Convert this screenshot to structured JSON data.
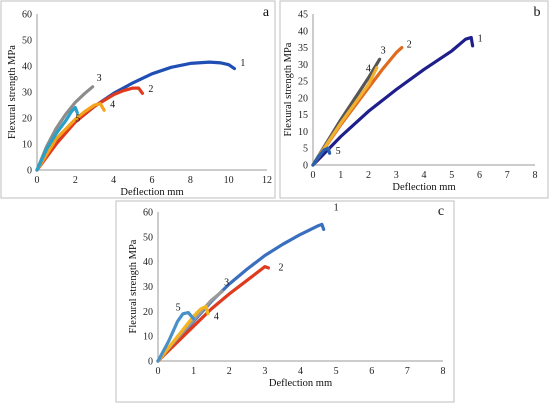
{
  "chart_data": [
    {
      "type": "line",
      "panel": "a",
      "xlabel": "Deflection mm",
      "ylabel": "Flexural strength MPa",
      "xlim": [
        0,
        12
      ],
      "ylim": [
        0,
        60
      ],
      "xticks": [
        "0",
        "2",
        "4",
        "6",
        "8",
        "10",
        "12"
      ],
      "yticks": [
        "0",
        "10",
        "20",
        "30",
        "40",
        "50",
        "60"
      ],
      "series": [
        {
          "name": "1",
          "color": "#1f4fb4",
          "x": [
            0,
            1,
            2,
            3,
            4,
            5,
            6,
            7,
            8,
            9,
            9.6,
            10,
            10.3
          ],
          "y": [
            0,
            11,
            18.5,
            24.5,
            29.5,
            33.5,
            37,
            39.5,
            41,
            41.5,
            41.2,
            40.5,
            39
          ]
        },
        {
          "name": "2",
          "color": "#e03a1e",
          "x": [
            0,
            1,
            2,
            3,
            4,
            4.5,
            5,
            5.3,
            5.5
          ],
          "y": [
            0,
            10,
            18.5,
            24.5,
            29,
            30.5,
            31.5,
            31.5,
            29.5
          ]
        },
        {
          "name": "3",
          "color": "#8c8c8c",
          "x": [
            0,
            0.5,
            1,
            1.5,
            2,
            2.5,
            2.9
          ],
          "y": [
            0,
            9,
            16,
            21.5,
            26,
            29.5,
            32
          ]
        },
        {
          "name": "4",
          "color": "#f5a31a",
          "x": [
            0,
            1,
            2,
            2.5,
            3,
            3.3,
            3.5
          ],
          "y": [
            0,
            12,
            19.5,
            22.5,
            25,
            25.5,
            23
          ]
        },
        {
          "name": "5",
          "color": "#28a0c8",
          "x": [
            0,
            0.5,
            1,
            1.5,
            1.8,
            2,
            2.1
          ],
          "y": [
            0,
            8,
            14,
            19,
            22.5,
            24,
            22
          ]
        }
      ]
    },
    {
      "type": "line",
      "panel": "b",
      "xlabel": "Deflection mm",
      "ylabel": "Flexural strength MPa",
      "xlim": [
        0,
        8
      ],
      "ylim": [
        0,
        45
      ],
      "xticks": [
        "0",
        "1",
        "2",
        "3",
        "4",
        "5",
        "6",
        "7",
        "8"
      ],
      "yticks": [
        "0",
        "5",
        "10",
        "15",
        "20",
        "25",
        "30",
        "35",
        "40",
        "45"
      ],
      "series": [
        {
          "name": "1",
          "color": "#1f1f8c",
          "x": [
            0,
            1,
            2,
            3,
            4,
            5,
            5.5,
            5.7,
            5.75
          ],
          "y": [
            0,
            8.5,
            16,
            22.5,
            28.5,
            34,
            37.5,
            38,
            35.5
          ]
        },
        {
          "name": "2",
          "color": "#e06a1e",
          "x": [
            0,
            1,
            2,
            2.5,
            3,
            3.2
          ],
          "y": [
            0,
            12,
            23,
            28.5,
            33.5,
            35
          ]
        },
        {
          "name": "3",
          "color": "#555555",
          "x": [
            0,
            1,
            2,
            2.4
          ],
          "y": [
            0,
            13.5,
            26,
            31.5
          ]
        },
        {
          "name": "4",
          "color": "#f0b030",
          "x": [
            0,
            1,
            2,
            2.3
          ],
          "y": [
            0,
            12.5,
            24,
            29
          ]
        },
        {
          "name": "5",
          "color": "#2a5fb0",
          "x": [
            0,
            0.2,
            0.4,
            0.55,
            0.6
          ],
          "y": [
            0,
            2.5,
            4.5,
            5,
            3.5
          ]
        }
      ]
    },
    {
      "type": "line",
      "panel": "c",
      "xlabel": "Deflection mm",
      "ylabel": "Flexural strength MPa",
      "xlim": [
        0,
        8
      ],
      "ylim": [
        0,
        60
      ],
      "xticks": [
        "0",
        "1",
        "2",
        "3",
        "4",
        "5",
        "6",
        "7",
        "8"
      ],
      "yticks": [
        "0",
        "10",
        "20",
        "30",
        "40",
        "50",
        "60"
      ],
      "series": [
        {
          "name": "1",
          "color": "#3a6fc0",
          "x": [
            0,
            0.5,
            1,
            1.5,
            2,
            2.5,
            3,
            3.5,
            4,
            4.5,
            4.6,
            4.65
          ],
          "y": [
            0,
            8,
            16,
            24,
            31,
            37,
            42.5,
            47,
            51,
            54.5,
            55,
            53
          ]
        },
        {
          "name": "2",
          "color": "#e03a1e",
          "x": [
            0,
            0.5,
            1,
            1.5,
            2,
            2.5,
            3,
            3.1
          ],
          "y": [
            0,
            7,
            14,
            21,
            27,
            32.5,
            38,
            37.5
          ]
        },
        {
          "name": "3",
          "color": "#9a9a9a",
          "x": [
            0,
            0.5,
            1,
            1.5,
            1.8
          ],
          "y": [
            0,
            8.5,
            16.5,
            24.5,
            28
          ]
        },
        {
          "name": "4",
          "color": "#f5b41e",
          "x": [
            0,
            0.5,
            1,
            1.2,
            1.35,
            1.4
          ],
          "y": [
            0,
            9,
            18,
            21,
            22,
            19
          ]
        },
        {
          "name": "5",
          "color": "#4a90c8",
          "x": [
            0,
            0.3,
            0.55,
            0.7,
            0.85,
            1.0
          ],
          "y": [
            0,
            8,
            16,
            19,
            19.5,
            17
          ]
        }
      ]
    }
  ]
}
